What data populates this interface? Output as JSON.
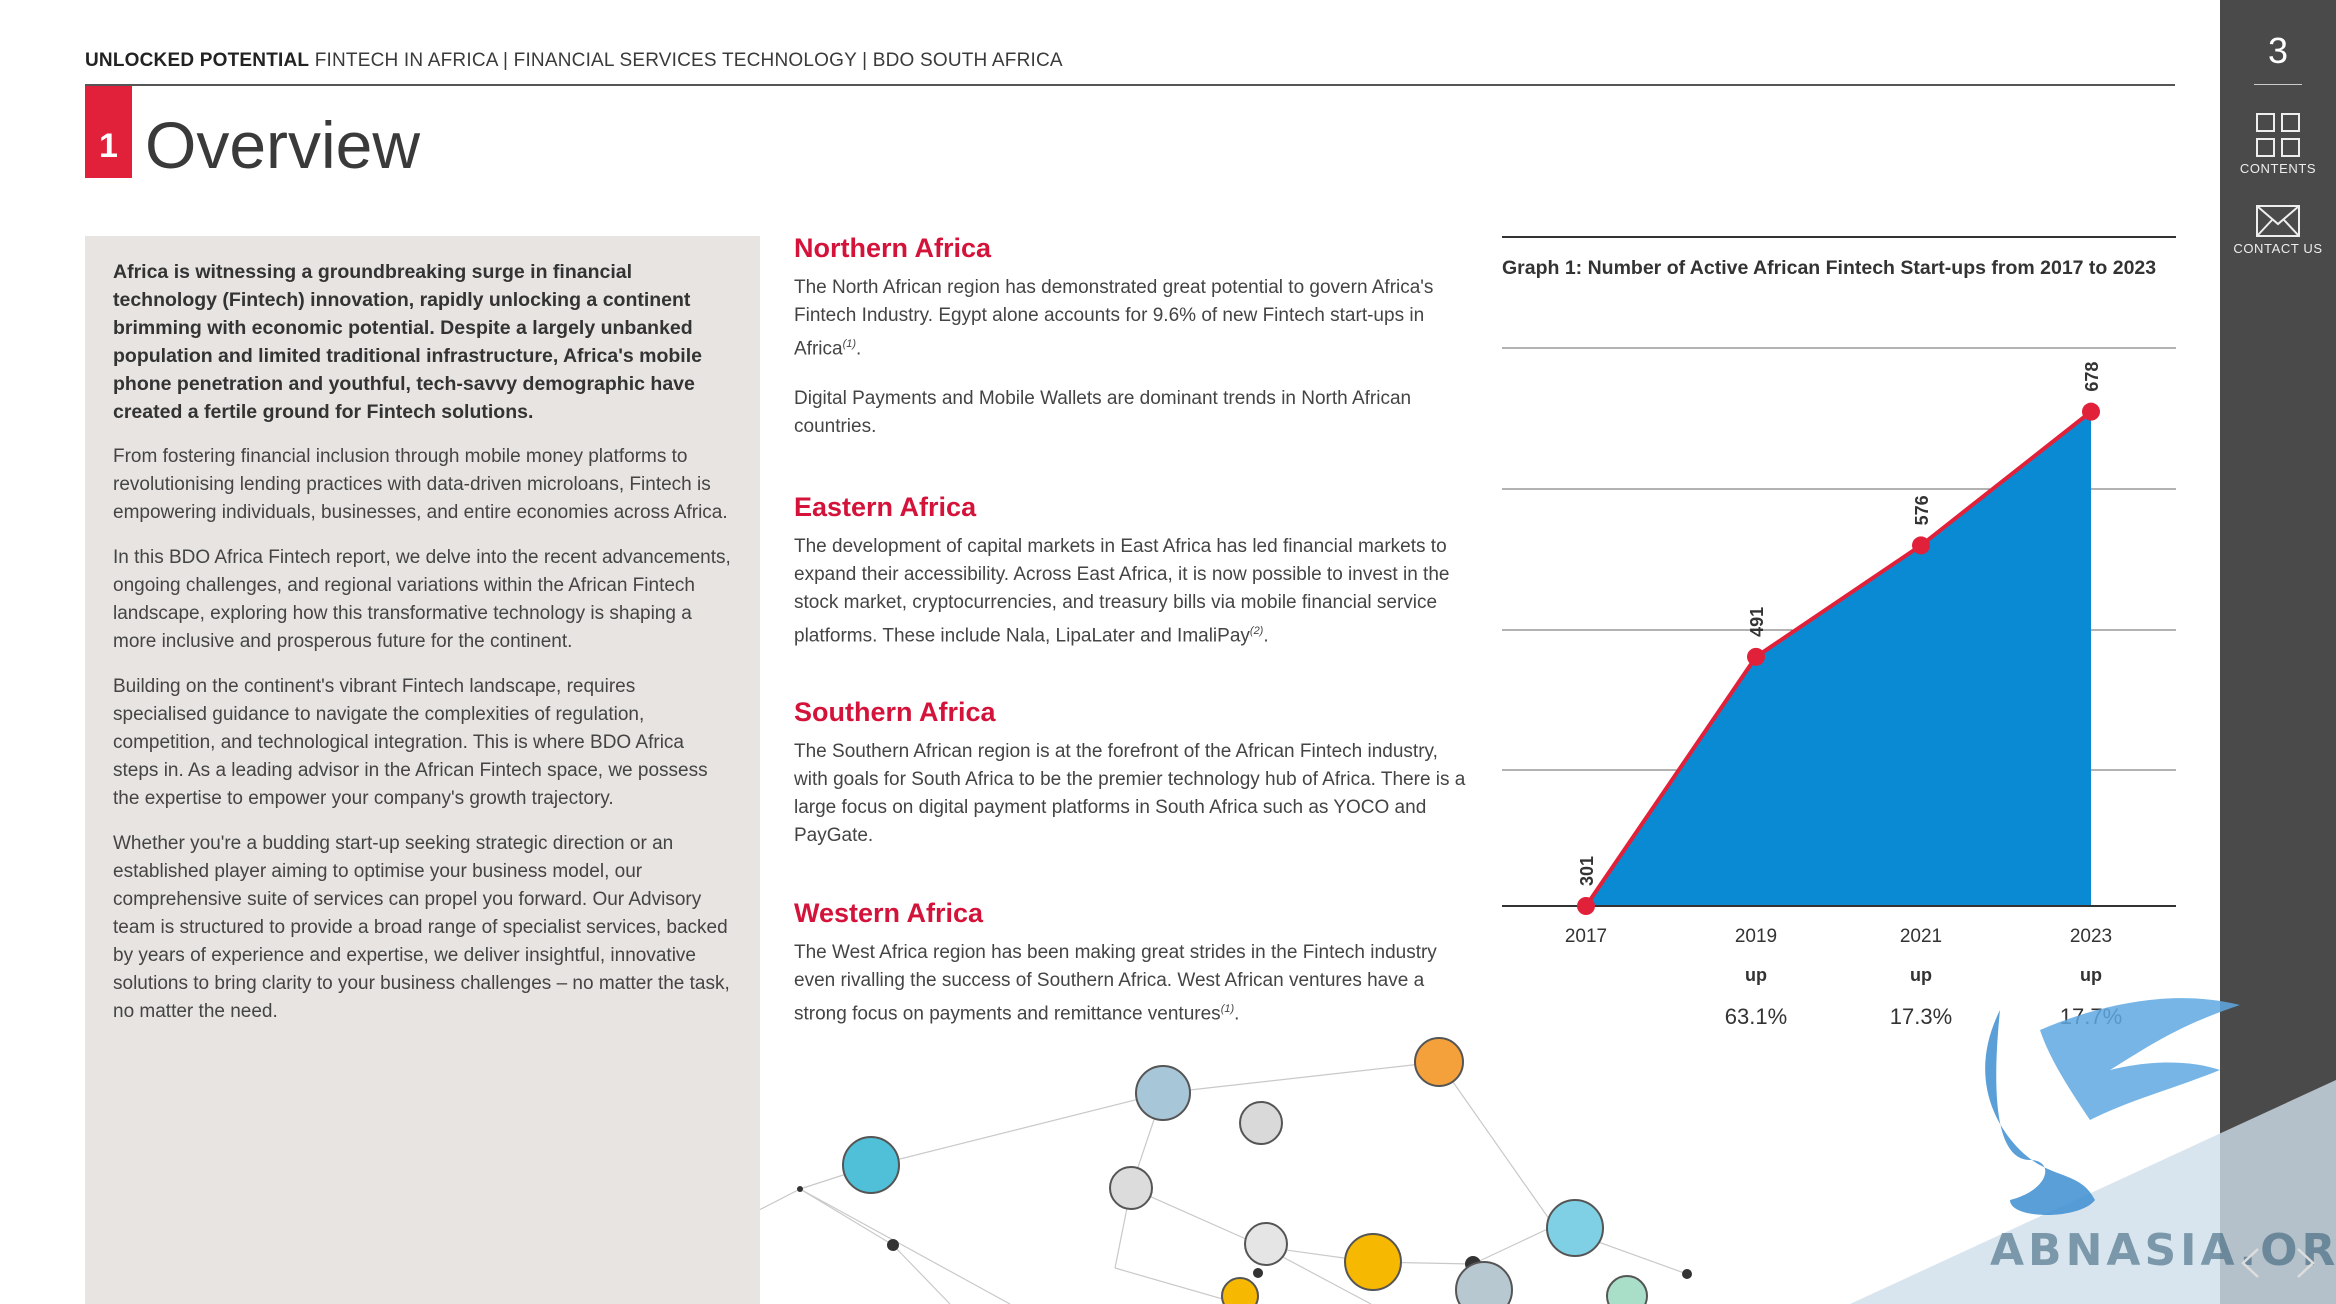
{
  "header": {
    "bold": "UNLOCKED POTENTIAL",
    "rest": " FINTECH IN AFRICA | FINANCIAL SERVICES TECHNOLOGY | BDO SOUTH AFRICA"
  },
  "section": {
    "number": "1",
    "title": "Overview"
  },
  "left": {
    "lead": "Africa is witnessing a groundbreaking surge in financial technology (Fintech) innovation, rapidly unlocking a continent brimming with economic potential.  Despite a largely unbanked population and limited traditional infrastructure, Africa's mobile phone penetration and youthful, tech-savvy demographic have created a fertile ground for Fintech solutions.",
    "p1": "From fostering financial inclusion through mobile money platforms to revolutionising lending practices with data-driven microloans, Fintech is empowering individuals, businesses, and entire economies across Africa.",
    "p2": "In this BDO Africa Fintech report, we delve into the recent advancements, ongoing challenges, and regional variations within the African Fintech landscape, exploring how this transformative technology is shaping a more inclusive and prosperous future for the continent.",
    "p3": "Building on the continent's vibrant Fintech landscape, requires specialised guidance to navigate the complexities of regulation, competition, and technological integration. This is where BDO Africa steps in. As a leading advisor in the African Fintech space, we possess the expertise to empower your company's growth trajectory.",
    "p4": "Whether you're a budding start-up seeking strategic direction or an established player aiming to optimise your business model, our comprehensive suite of services can propel you forward.  Our Advisory team is structured to provide a broad range of specialist services, backed by years of experience and expertise, we deliver insightful, innovative solutions to bring clarity to your business challenges – no matter the task, no matter the need."
  },
  "regions": {
    "north": {
      "heading": "Northern Africa",
      "p1": "The North African region has demonstrated great potential to govern Africa's Fintech Industry. Egypt alone accounts for 9.6% of new Fintech start-ups in Africa",
      "p1_ref": "(1)",
      "p1_end": ".",
      "p2": "Digital Payments and Mobile Wallets are dominant trends in North African countries."
    },
    "east": {
      "heading": "Eastern Africa",
      "p1": "The development of capital markets in East Africa has led financial markets to expand their accessibility. Across East Africa, it is now possible to invest in the stock market, cryptocurrencies, and treasury bills via mobile financial service platforms. These include Nala, LipaLater and ImaliPay",
      "p1_ref": "(2)",
      "p1_end": "."
    },
    "south": {
      "heading": "Southern Africa",
      "p1": "The Southern African region is at the forefront of the African Fintech industry, with goals for South Africa to be the premier technology hub of Africa. There is a large focus on digital payment platforms in South Africa such as YOCO and PayGate."
    },
    "west": {
      "heading": "Western Africa",
      "p1": "The West Africa region has been making great strides in the Fintech industry even rivalling the success of Southern Africa. West African ventures have a strong focus on payments and remittance ventures",
      "p1_ref": "(1)",
      "p1_end": "."
    }
  },
  "chart_data": {
    "type": "area",
    "title": "Graph 1: Number of Active African Fintech Start-ups from 2017 to 2023",
    "categories": [
      "2017",
      "2019",
      "2021",
      "2023"
    ],
    "values": [
      301,
      491,
      576,
      678
    ],
    "value_labels": [
      "301",
      "491",
      "576",
      "678"
    ],
    "growth": [
      {
        "up": "",
        "pct": ""
      },
      {
        "up": "up",
        "pct": "63.1%"
      },
      {
        "up": "up",
        "pct": "17.3%"
      },
      {
        "up": "up",
        "pct": "17.7%"
      }
    ],
    "ylim": [
      301,
      725
    ],
    "grid": true,
    "fill_color": "#0a8ad2",
    "line_color": "#e1213a",
    "marker_color": "#e1213a"
  },
  "sidebar": {
    "page_number": "3",
    "contents_label": "CONTENTS",
    "contact_label": "CONTACT US",
    "prev_icon": "chevron-left-icon",
    "next_icon": "chevron-right-icon"
  },
  "watermark": {
    "text": "ABNASIA.ORG"
  },
  "colors": {
    "accent": "#e1213a",
    "heading": "#d4133a",
    "panel": "#e7e4e2",
    "sidebar": "#4a4a4a"
  }
}
